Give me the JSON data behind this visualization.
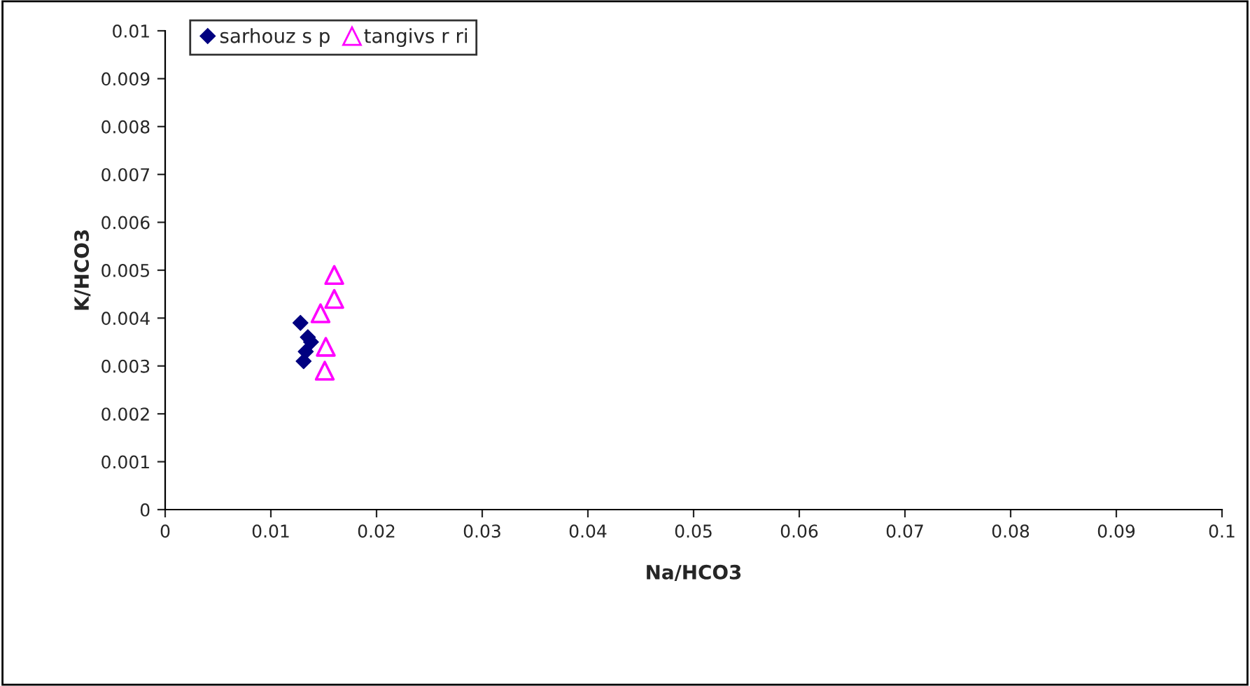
{
  "chart_data": {
    "type": "scatter",
    "xlabel": "Na/HCO3",
    "ylabel": "K/HCO3",
    "xlim": [
      0,
      0.1
    ],
    "xticks": [
      0,
      0.01,
      0.02,
      0.03,
      0.04,
      0.05,
      0.06,
      0.07,
      0.08,
      0.09,
      0.1
    ],
    "ylim": [
      0,
      0.01
    ],
    "yticks": [
      0,
      0.001,
      0.002,
      0.003,
      0.004,
      0.005,
      0.006,
      0.007,
      0.008,
      0.009,
      0.01
    ],
    "grid": false,
    "legend": "top left",
    "series": [
      {
        "name": "sarhouz s p",
        "color": "#000080",
        "marker": "diamond",
        "x": [
          0.0128,
          0.0135,
          0.0138,
          0.0133,
          0.0131
        ],
        "values": [
          0.0039,
          0.0036,
          0.0035,
          0.0033,
          0.0031
        ]
      },
      {
        "name": "tangivs r ri",
        "color": "#ff00ff",
        "marker": "triangle",
        "x": [
          0.016,
          0.016,
          0.0147,
          0.0152,
          0.0151
        ],
        "values": [
          0.0049,
          0.0044,
          0.0041,
          0.0034,
          0.0029
        ]
      }
    ]
  }
}
